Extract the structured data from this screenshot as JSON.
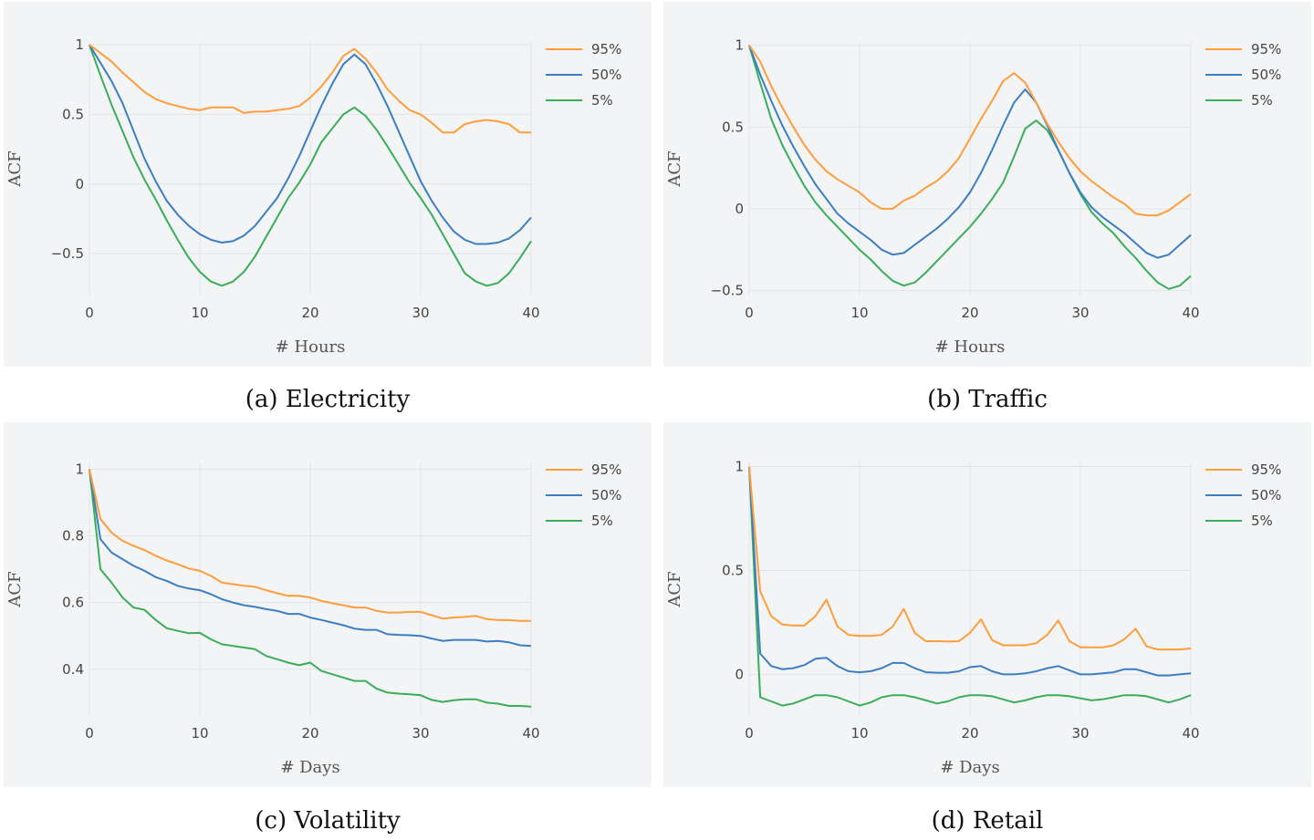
{
  "colors": {
    "p95": "#ff9d3b",
    "p50": "#3b7ec4",
    "p5": "#3aad5a"
  },
  "chart_data": [
    {
      "type": "line",
      "caption": "(a) Electricity",
      "xlabel": "# Hours",
      "ylabel": "ACF",
      "xlim": [
        0,
        40
      ],
      "ylim": [
        -0.8,
        1.02
      ],
      "xticks": [
        0,
        10,
        20,
        30,
        40
      ],
      "yticks": [
        -0.5,
        0,
        0.5,
        1
      ],
      "ytick_labels": [
        "−0.5",
        "0",
        "0.5",
        "1"
      ],
      "legend": "top-right",
      "x": [
        0,
        1,
        2,
        3,
        4,
        5,
        6,
        7,
        8,
        9,
        10,
        11,
        12,
        13,
        14,
        15,
        16,
        17,
        18,
        19,
        20,
        21,
        22,
        23,
        24,
        25,
        26,
        27,
        28,
        29,
        30,
        31,
        32,
        33,
        34,
        35,
        36,
        37,
        38,
        39,
        40
      ],
      "series": [
        {
          "name": "95%",
          "color": "p95",
          "values": [
            1,
            0.94,
            0.88,
            0.8,
            0.73,
            0.66,
            0.61,
            0.58,
            0.56,
            0.54,
            0.53,
            0.55,
            0.55,
            0.55,
            0.51,
            0.52,
            0.52,
            0.53,
            0.54,
            0.56,
            0.62,
            0.7,
            0.8,
            0.92,
            0.97,
            0.9,
            0.8,
            0.68,
            0.6,
            0.53,
            0.5,
            0.44,
            0.37,
            0.37,
            0.43,
            0.45,
            0.46,
            0.45,
            0.43,
            0.37,
            0.37
          ]
        },
        {
          "name": "50%",
          "color": "p50",
          "values": [
            1,
            0.87,
            0.74,
            0.58,
            0.38,
            0.18,
            0.02,
            -0.12,
            -0.22,
            -0.3,
            -0.36,
            -0.4,
            -0.42,
            -0.41,
            -0.37,
            -0.3,
            -0.2,
            -0.1,
            0.04,
            0.2,
            0.38,
            0.56,
            0.72,
            0.86,
            0.93,
            0.86,
            0.72,
            0.56,
            0.38,
            0.2,
            0.02,
            -0.12,
            -0.24,
            -0.34,
            -0.4,
            -0.43,
            -0.43,
            -0.42,
            -0.39,
            -0.33,
            -0.24
          ]
        },
        {
          "name": "5%",
          "color": "p5",
          "values": [
            1,
            0.78,
            0.57,
            0.38,
            0.19,
            0.03,
            -0.11,
            -0.26,
            -0.4,
            -0.53,
            -0.63,
            -0.7,
            -0.73,
            -0.7,
            -0.63,
            -0.52,
            -0.38,
            -0.24,
            -0.1,
            0.01,
            0.14,
            0.3,
            0.4,
            0.5,
            0.55,
            0.49,
            0.39,
            0.27,
            0.14,
            0.01,
            -0.1,
            -0.22,
            -0.36,
            -0.5,
            -0.64,
            -0.7,
            -0.73,
            -0.71,
            -0.64,
            -0.53,
            -0.41
          ]
        }
      ]
    },
    {
      "type": "line",
      "caption": "(b) Traffic",
      "xlabel": "# Hours",
      "ylabel": "ACF",
      "xlim": [
        0,
        40
      ],
      "ylim": [
        -0.53,
        1.02
      ],
      "xticks": [
        0,
        10,
        20,
        30,
        40
      ],
      "yticks": [
        -0.5,
        0,
        0.5,
        1
      ],
      "ytick_labels": [
        "−0.5",
        "0",
        "0.5",
        "1"
      ],
      "legend": "top-right",
      "x": [
        0,
        1,
        2,
        3,
        4,
        5,
        6,
        7,
        8,
        9,
        10,
        11,
        12,
        13,
        14,
        15,
        16,
        17,
        18,
        19,
        20,
        21,
        22,
        23,
        24,
        25,
        26,
        27,
        28,
        29,
        30,
        31,
        32,
        33,
        34,
        35,
        36,
        37,
        38,
        39,
        40
      ],
      "series": [
        {
          "name": "95%",
          "color": "p95",
          "values": [
            1,
            0.9,
            0.75,
            0.62,
            0.5,
            0.39,
            0.3,
            0.23,
            0.18,
            0.14,
            0.1,
            0.04,
            0,
            0,
            0.05,
            0.08,
            0.13,
            0.17,
            0.23,
            0.31,
            0.43,
            0.55,
            0.66,
            0.78,
            0.83,
            0.77,
            0.65,
            0.52,
            0.41,
            0.31,
            0.23,
            0.17,
            0.12,
            0.07,
            0.03,
            -0.03,
            -0.04,
            -0.04,
            -0.01,
            0.04,
            0.09
          ]
        },
        {
          "name": "50%",
          "color": "p50",
          "values": [
            1,
            0.82,
            0.66,
            0.51,
            0.38,
            0.26,
            0.15,
            0.06,
            -0.03,
            -0.09,
            -0.14,
            -0.19,
            -0.25,
            -0.28,
            -0.27,
            -0.22,
            -0.17,
            -0.12,
            -0.06,
            0.01,
            0.1,
            0.22,
            0.36,
            0.51,
            0.65,
            0.73,
            0.65,
            0.51,
            0.36,
            0.22,
            0.1,
            0.01,
            -0.05,
            -0.1,
            -0.15,
            -0.21,
            -0.27,
            -0.3,
            -0.28,
            -0.22,
            -0.16
          ]
        },
        {
          "name": "5%",
          "color": "p5",
          "values": [
            1,
            0.77,
            0.55,
            0.39,
            0.26,
            0.14,
            0.04,
            -0.04,
            -0.11,
            -0.18,
            -0.25,
            -0.31,
            -0.38,
            -0.44,
            -0.47,
            -0.45,
            -0.39,
            -0.32,
            -0.25,
            -0.18,
            -0.11,
            -0.03,
            0.06,
            0.16,
            0.32,
            0.49,
            0.54,
            0.48,
            0.36,
            0.22,
            0.09,
            -0.02,
            -0.09,
            -0.15,
            -0.23,
            -0.3,
            -0.38,
            -0.45,
            -0.49,
            -0.47,
            -0.41
          ]
        }
      ]
    },
    {
      "type": "line",
      "caption": "(c) Volatility",
      "xlabel": "# Days",
      "ylabel": "ACF",
      "xlim": [
        0,
        40
      ],
      "ylim": [
        0.26,
        1.02
      ],
      "xticks": [
        0,
        10,
        20,
        30,
        40
      ],
      "yticks": [
        0.4,
        0.6,
        0.8,
        1
      ],
      "ytick_labels": [
        "0.4",
        "0.6",
        "0.8",
        "1"
      ],
      "legend": "top-right",
      "x": [
        0,
        1,
        2,
        3,
        4,
        5,
        6,
        7,
        8,
        9,
        10,
        11,
        12,
        13,
        14,
        15,
        16,
        17,
        18,
        19,
        20,
        21,
        22,
        23,
        24,
        25,
        26,
        27,
        28,
        29,
        30,
        31,
        32,
        33,
        34,
        35,
        36,
        37,
        38,
        39,
        40
      ],
      "series": [
        {
          "name": "95%",
          "color": "p95",
          "values": [
            1,
            0.85,
            0.81,
            0.785,
            0.77,
            0.757,
            0.74,
            0.726,
            0.715,
            0.702,
            0.695,
            0.68,
            0.66,
            0.655,
            0.65,
            0.647,
            0.637,
            0.628,
            0.62,
            0.62,
            0.615,
            0.605,
            0.598,
            0.592,
            0.585,
            0.585,
            0.575,
            0.57,
            0.57,
            0.572,
            0.572,
            0.562,
            0.552,
            0.555,
            0.557,
            0.56,
            0.55,
            0.548,
            0.547,
            0.545,
            0.545
          ]
        },
        {
          "name": "50%",
          "color": "p50",
          "values": [
            1,
            0.79,
            0.75,
            0.73,
            0.71,
            0.695,
            0.676,
            0.665,
            0.65,
            0.642,
            0.637,
            0.625,
            0.61,
            0.6,
            0.592,
            0.587,
            0.58,
            0.575,
            0.566,
            0.566,
            0.555,
            0.548,
            0.54,
            0.532,
            0.522,
            0.518,
            0.518,
            0.505,
            0.503,
            0.502,
            0.5,
            0.492,
            0.485,
            0.488,
            0.488,
            0.488,
            0.483,
            0.485,
            0.481,
            0.472,
            0.47
          ]
        },
        {
          "name": "5%",
          "color": "p5",
          "values": [
            1,
            0.7,
            0.66,
            0.615,
            0.585,
            0.578,
            0.548,
            0.523,
            0.515,
            0.508,
            0.509,
            0.49,
            0.475,
            0.47,
            0.465,
            0.46,
            0.44,
            0.43,
            0.42,
            0.412,
            0.42,
            0.395,
            0.385,
            0.375,
            0.365,
            0.365,
            0.342,
            0.33,
            0.327,
            0.325,
            0.322,
            0.308,
            0.302,
            0.307,
            0.31,
            0.31,
            0.3,
            0.297,
            0.29,
            0.29,
            0.288
          ]
        }
      ]
    },
    {
      "type": "line",
      "caption": "(d) Retail",
      "xlabel": "# Days",
      "ylabel": "ACF",
      "xlim": [
        0,
        40
      ],
      "ylim": [
        -0.2,
        1.02
      ],
      "xticks": [
        0,
        10,
        20,
        30,
        40
      ],
      "yticks": [
        0,
        0.5,
        1
      ],
      "ytick_labels": [
        "0",
        "0.5",
        "1"
      ],
      "legend": "top-right",
      "x": [
        0,
        1,
        2,
        3,
        4,
        5,
        6,
        7,
        8,
        9,
        10,
        11,
        12,
        13,
        14,
        15,
        16,
        17,
        18,
        19,
        20,
        21,
        22,
        23,
        24,
        25,
        26,
        27,
        28,
        29,
        30,
        31,
        32,
        33,
        34,
        35,
        36,
        37,
        38,
        39,
        40
      ],
      "series": [
        {
          "name": "95%",
          "color": "p95",
          "values": [
            1,
            0.4,
            0.28,
            0.24,
            0.235,
            0.235,
            0.28,
            0.36,
            0.23,
            0.19,
            0.185,
            0.185,
            0.19,
            0.23,
            0.315,
            0.2,
            0.16,
            0.16,
            0.158,
            0.16,
            0.2,
            0.265,
            0.165,
            0.14,
            0.14,
            0.14,
            0.15,
            0.19,
            0.26,
            0.16,
            0.13,
            0.13,
            0.13,
            0.14,
            0.17,
            0.22,
            0.135,
            0.12,
            0.12,
            0.12,
            0.125
          ]
        },
        {
          "name": "50%",
          "color": "p50",
          "values": [
            1,
            0.1,
            0.04,
            0.025,
            0.03,
            0.045,
            0.075,
            0.08,
            0.04,
            0.015,
            0.01,
            0.015,
            0.03,
            0.055,
            0.055,
            0.03,
            0.01,
            0.008,
            0.008,
            0.015,
            0.035,
            0.04,
            0.015,
            0,
            0,
            0.005,
            0.015,
            0.03,
            0.04,
            0.02,
            0,
            0,
            0.005,
            0.01,
            0.025,
            0.025,
            0.01,
            -0.005,
            -0.005,
            0,
            0.005
          ]
        },
        {
          "name": "5%",
          "color": "p5",
          "values": [
            1,
            -0.11,
            -0.13,
            -0.15,
            -0.14,
            -0.12,
            -0.1,
            -0.1,
            -0.11,
            -0.13,
            -0.15,
            -0.135,
            -0.11,
            -0.1,
            -0.1,
            -0.11,
            -0.125,
            -0.14,
            -0.13,
            -0.11,
            -0.1,
            -0.1,
            -0.105,
            -0.12,
            -0.135,
            -0.125,
            -0.11,
            -0.1,
            -0.1,
            -0.105,
            -0.115,
            -0.125,
            -0.12,
            -0.11,
            -0.1,
            -0.1,
            -0.105,
            -0.12,
            -0.135,
            -0.12,
            -0.1
          ]
        }
      ]
    }
  ]
}
